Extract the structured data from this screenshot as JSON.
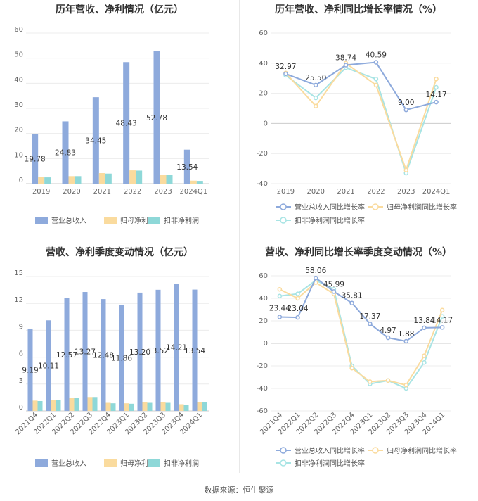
{
  "source": "数据来源：恒生聚源",
  "chart_data": [
    {
      "id": "c1",
      "type": "bar",
      "title": "历年营收、净利情况（亿元）",
      "categories": [
        "2019",
        "2020",
        "2021",
        "2022",
        "2023",
        "2024Q1"
      ],
      "ylim": [
        0,
        60
      ],
      "yticks": [
        0,
        10,
        20,
        30,
        40,
        50,
        60
      ],
      "series": [
        {
          "name": "营业总收入",
          "color": "#8eaadc",
          "values": [
            19.78,
            24.83,
            34.45,
            48.43,
            52.78,
            13.54
          ],
          "labels": [
            "19.78",
            "24.83",
            "34.45",
            "48.43",
            "52.78",
            "13.54"
          ]
        },
        {
          "name": "归母净利润",
          "color": "#fadb9e",
          "values": [
            2.6,
            3.0,
            4.2,
            5.3,
            3.6,
            1.2
          ]
        },
        {
          "name": "扣非净利润",
          "color": "#8ed8d8",
          "values": [
            2.5,
            3.0,
            4.0,
            5.2,
            3.5,
            1.1
          ]
        }
      ],
      "legend": [
        "营业总收入",
        "归母净利润",
        "扣非净利润"
      ]
    },
    {
      "id": "c2",
      "type": "line",
      "title": "历年营收、净利同比增长率情况（%）",
      "categories": [
        "2019",
        "2020",
        "2021",
        "2022",
        "2023",
        "2024Q1"
      ],
      "ylim": [
        -40,
        60
      ],
      "yticks": [
        -40,
        -20,
        0,
        20,
        40,
        60
      ],
      "series": [
        {
          "name": "营业总收入同比增长率",
          "color": "#8eaadc",
          "values": [
            32.97,
            25.5,
            38.74,
            40.59,
            9.0,
            14.17
          ],
          "labels": [
            "32.97",
            "25.50",
            "38.74",
            "40.59",
            "9.00",
            "14.17"
          ]
        },
        {
          "name": "归母净利润同比增长率",
          "color": "#fadb9e",
          "values": [
            33.5,
            11.5,
            40,
            25.5,
            -31,
            29.5
          ]
        },
        {
          "name": "扣非净利润同比增长率",
          "color": "#a8e4e4",
          "values": [
            32,
            17,
            37,
            29.5,
            -33,
            24
          ]
        }
      ],
      "legend": [
        "营业总收入同比增长率",
        "归母净利润同比增长率",
        "扣非净利润同比增长率"
      ]
    },
    {
      "id": "c3",
      "type": "bar",
      "title": "营收、净利季度变动情况（亿元）",
      "categories": [
        "2021Q4",
        "2022Q1",
        "2022Q2",
        "2022Q3",
        "2022Q4",
        "2023Q1",
        "2023Q2",
        "2023Q3",
        "2023Q4",
        "2024Q1"
      ],
      "ylim": [
        0,
        15
      ],
      "yticks": [
        0,
        3,
        6,
        9,
        12,
        15
      ],
      "series": [
        {
          "name": "营业总收入",
          "color": "#8eaadc",
          "values": [
            9.19,
            10.11,
            12.57,
            13.27,
            12.48,
            11.86,
            13.2,
            13.52,
            14.21,
            13.54
          ],
          "labels": [
            "9.19",
            "10.11",
            "12.57",
            "13.27",
            "12.48",
            "11.86",
            "13.20",
            "13.52",
            "14.21",
            "13.54"
          ]
        },
        {
          "name": "归母净利润",
          "color": "#fadb9e",
          "values": [
            1.15,
            1.25,
            1.45,
            1.55,
            0.9,
            0.85,
            0.95,
            0.95,
            0.75,
            1.0
          ]
        },
        {
          "name": "扣非净利润",
          "color": "#8ed8d8",
          "values": [
            1.1,
            1.2,
            1.45,
            1.55,
            0.85,
            0.8,
            0.9,
            0.9,
            0.7,
            0.95
          ]
        }
      ],
      "legend": [
        "营业总收入",
        "归母净利润",
        "扣非净利润"
      ]
    },
    {
      "id": "c4",
      "type": "line",
      "title": "营收、净利同比增长率季度变动情况（%）",
      "categories": [
        "2021Q4",
        "2022Q1",
        "2022Q2",
        "2022Q3",
        "2022Q4",
        "2023Q1",
        "2023Q2",
        "2023Q3",
        "2023Q4",
        "2024Q1"
      ],
      "ylim": [
        -60,
        60
      ],
      "yticks": [
        -60,
        -40,
        -20,
        0,
        20,
        40,
        60
      ],
      "series": [
        {
          "name": "营业总收入同比增长率",
          "color": "#8eaadc",
          "values": [
            23.44,
            23.04,
            58.06,
            45.99,
            35.81,
            17.37,
            4.97,
            1.88,
            13.84,
            14.17
          ],
          "labels": [
            "23.44",
            "23.04",
            "58.06",
            "45.99",
            "35.81",
            "17.37",
            "4.97",
            "1.88",
            "13.84",
            "14.17"
          ]
        },
        {
          "name": "归母净利润同比增长率",
          "color": "#fadb9e",
          "values": [
            48,
            40,
            54,
            44,
            -22,
            -34,
            -33,
            -37,
            -11,
            29.5
          ]
        },
        {
          "name": "扣非净利润同比增长率",
          "color": "#a8e4e4",
          "values": [
            42,
            44,
            56,
            48,
            -20,
            -36,
            -33,
            -40,
            -17,
            24
          ]
        }
      ],
      "legend": [
        "营业总收入同比增长率",
        "归母净利润同比增长率",
        "扣非净利润同比增长率"
      ]
    }
  ]
}
